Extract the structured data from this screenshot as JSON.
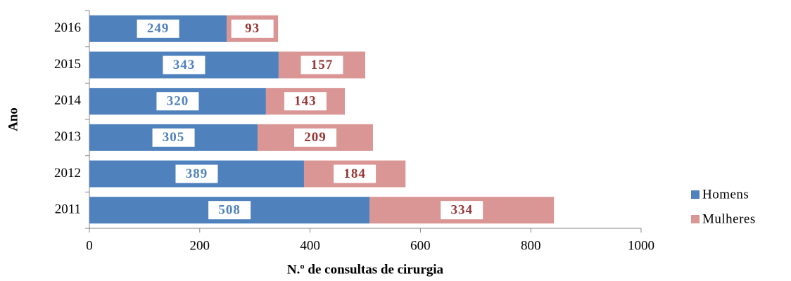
{
  "chart_data": {
    "type": "bar",
    "orientation": "horizontal",
    "stacked": true,
    "xlabel": "N.º de consultas de cirurgia",
    "ylabel": "Ano",
    "categories": [
      "2011",
      "2012",
      "2013",
      "2014",
      "2015",
      "2016"
    ],
    "series": [
      {
        "name": "Homens",
        "color": "#4f81bd",
        "label_color": "#4f81bd",
        "values": [
          508,
          389,
          305,
          320,
          343,
          249
        ]
      },
      {
        "name": "Mulheres",
        "color": "#d99694",
        "label_color": "#953735",
        "values": [
          334,
          184,
          209,
          143,
          157,
          93
        ]
      }
    ],
    "xlim": [
      0,
      1000
    ],
    "xticks": [
      0,
      200,
      400,
      600,
      800,
      1000
    ],
    "legend": "right"
  }
}
